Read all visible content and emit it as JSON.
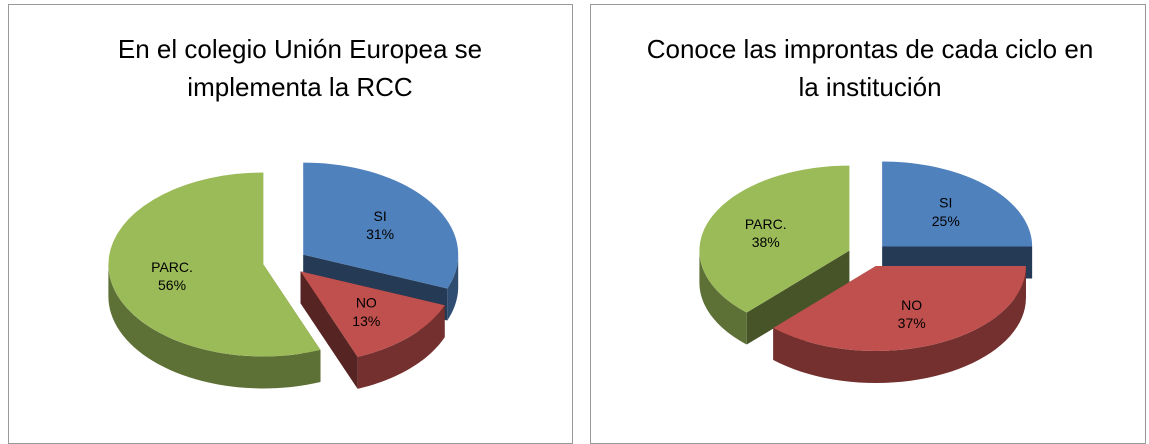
{
  "chart_data": [
    {
      "type": "pie",
      "title": "En el colegio Unión Europea se implementa la RCC",
      "categories": [
        "SI",
        "NO",
        "PARC."
      ],
      "values": [
        31,
        13,
        56
      ],
      "value_labels": [
        "31%",
        "13%",
        "56%"
      ],
      "colors": [
        "#4f81bd",
        "#c0504d",
        "#9bbb59"
      ]
    },
    {
      "type": "pie",
      "title": "Conoce las improntas de cada ciclo en la institución",
      "categories": [
        "SI",
        "NO",
        "PARC."
      ],
      "values": [
        25,
        37,
        38
      ],
      "value_labels": [
        "25%",
        "37%",
        "38%"
      ],
      "colors": [
        "#4f81bd",
        "#c0504d",
        "#9bbb59"
      ]
    }
  ]
}
